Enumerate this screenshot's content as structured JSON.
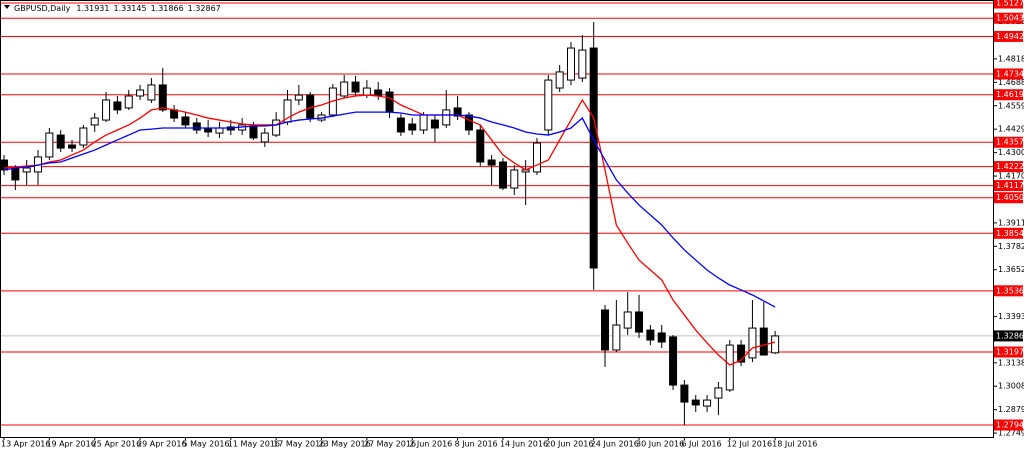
{
  "chart_data": {
    "type": "candlestick",
    "title": "GBPUSD,Daily",
    "quote": [
      1.31931,
      1.33145,
      1.31866,
      1.32867
    ],
    "categories": [
      "13 Apr 2016",
      null,
      null,
      null,
      "19 Apr 2016",
      null,
      null,
      null,
      "25 Apr 2016",
      null,
      null,
      null,
      "29 Apr 2016",
      null,
      null,
      null,
      "5 May 2016",
      null,
      null,
      null,
      "11 May 2016",
      null,
      null,
      null,
      "17 May 2016",
      null,
      null,
      null,
      "23 May 2016",
      null,
      null,
      null,
      "27 May 2016",
      null,
      null,
      null,
      "2 Jun 2016",
      null,
      null,
      null,
      "8 Jun 2016",
      null,
      null,
      null,
      "14 Jun 2016",
      null,
      null,
      null,
      "20 Jun 2016",
      null,
      null,
      null,
      "24 Jun 2016",
      null,
      null,
      null,
      "30 Jun 2016",
      null,
      null,
      null,
      "6 Jul 2016",
      null,
      null,
      null,
      "12 Jul 2016",
      null,
      null,
      null,
      "18 Jul 2016"
    ],
    "open": [
      1.4259,
      1.4215,
      1.4193,
      1.4193,
      1.4276,
      1.4397,
      1.4342,
      1.4342,
      1.4453,
      1.448,
      1.458,
      1.4547,
      1.4613,
      1.4591,
      1.4674,
      1.4536,
      1.4497,
      1.4464,
      1.4436,
      1.4408,
      1.4442,
      1.4425,
      1.4447,
      1.4359,
      1.4397,
      1.4469,
      1.4591,
      1.4618,
      1.448,
      1.4508,
      1.4613,
      1.469,
      1.4618,
      1.4646,
      1.4635,
      1.4491,
      1.4458,
      1.4425,
      1.448,
      1.4453,
      1.4547,
      1.4508,
      1.4425,
      1.4259,
      1.4248,
      1.4104,
      1.4193,
      1.4193,
      1.4425,
      1.4657,
      1.4701,
      1.4712,
      1.4878,
      1.343,
      1.3209,
      1.333,
      1.3419,
      1.3319,
      1.3303,
      1.3281,
      1.3015,
      1.2932,
      1.2899,
      1.2943,
      1.2988,
      1.3236,
      1.3165,
      1.333,
      1.31931
    ],
    "high": [
      1.4287,
      1.4231,
      1.4259,
      1.4314,
      1.4436,
      1.4425,
      1.437,
      1.4453,
      1.4519,
      1.4635,
      1.4613,
      1.4646,
      1.4674,
      1.4712,
      1.4768,
      1.4563,
      1.4524,
      1.4491,
      1.448,
      1.4469,
      1.448,
      1.4491,
      1.4469,
      1.4436,
      1.4524,
      1.4646,
      1.4674,
      1.4635,
      1.4524,
      1.4679,
      1.4729,
      1.4724,
      1.4701,
      1.469,
      1.4657,
      1.4513,
      1.4491,
      1.4524,
      1.4508,
      1.4646,
      1.4613,
      1.4524,
      1.4453,
      1.4287,
      1.427,
      1.4231,
      1.4259,
      1.4381,
      1.4729,
      1.4784,
      1.4911,
      1.495,
      1.5022,
      1.3458,
      1.3485,
      1.3529,
      1.3513,
      1.3347,
      1.3347,
      1.3292,
      1.3043,
      1.296,
      1.296,
      1.3032,
      1.3264,
      1.3264,
      1.3485,
      1.3474,
      1.33145
    ],
    "low": [
      1.4176,
      1.4093,
      1.4121,
      1.4121,
      1.4259,
      1.4303,
      1.4303,
      1.4325,
      1.4414,
      1.4469,
      1.4513,
      1.4536,
      1.4591,
      1.4574,
      1.4524,
      1.4469,
      1.4436,
      1.4403,
      1.4386,
      1.4381,
      1.4397,
      1.4397,
      1.437,
      1.4331,
      1.4386,
      1.4453,
      1.4563,
      1.4469,
      1.4469,
      1.4497,
      1.4602,
      1.4613,
      1.4602,
      1.4591,
      1.4491,
      1.4392,
      1.4397,
      1.4403,
      1.4359,
      1.4436,
      1.448,
      1.4397,
      1.4226,
      1.4121,
      1.4093,
      1.4066,
      1.401,
      1.4176,
      1.4397,
      1.4635,
      1.4674,
      1.469,
      1.3541,
      1.3115,
      1.3198,
      1.3292,
      1.3275,
      1.3236,
      1.322,
      1.2988,
      1.2794,
      1.2866,
      1.2866,
      1.2849,
      1.2977,
      1.312,
      1.3142,
      1.3181,
      1.31866
    ],
    "close": [
      1.4204,
      1.4149,
      1.4215,
      1.4276,
      1.4408,
      1.4325,
      1.4325,
      1.4436,
      1.4491,
      1.4591,
      1.4536,
      1.4613,
      1.4646,
      1.4674,
      1.4536,
      1.4491,
      1.4453,
      1.4425,
      1.4414,
      1.4436,
      1.4425,
      1.4453,
      1.4381,
      1.4408,
      1.448,
      1.4591,
      1.4618,
      1.4491,
      1.4508,
      1.4657,
      1.469,
      1.4635,
      1.4657,
      1.4613,
      1.4524,
      1.4414,
      1.4425,
      1.4508,
      1.4436,
      1.4536,
      1.4502,
      1.4425,
      1.4248,
      1.4231,
      1.4104,
      1.4204,
      1.4204,
      1.4353,
      1.4701,
      1.4746,
      1.4878,
      1.4867,
      1.3662,
      1.3209,
      1.3347,
      1.3419,
      1.3308,
      1.3264,
      1.3253,
      1.3015,
      1.2921,
      1.2905,
      1.2932,
      1.2999,
      1.3236,
      1.3142,
      1.333,
      1.3181,
      1.32867
    ],
    "up_color": "#ffffff",
    "down_color": "#000000",
    "moving_averages": [
      {
        "color": "#ff0000",
        "values": [
          1.4215,
          1.422,
          1.4226,
          1.4231,
          1.4248,
          1.4259,
          1.4287,
          1.4314,
          1.4359,
          1.4397,
          1.4425,
          1.4453,
          1.4491,
          1.4536,
          1.4547,
          1.4536,
          1.4524,
          1.4508,
          1.4491,
          1.448,
          1.4469,
          1.4458,
          1.4453,
          1.4453,
          1.4453,
          1.4491,
          1.4524,
          1.4547,
          1.4563,
          1.4585,
          1.4602,
          1.4613,
          1.4618,
          1.4613,
          1.4602,
          1.4563,
          1.4536,
          1.4508,
          1.4508,
          1.4508,
          1.4508,
          1.448,
          1.4453,
          1.437,
          1.4287,
          1.4243,
          1.4204,
          1.4231,
          1.4259,
          1.437,
          1.448,
          1.4591,
          1.4491,
          1.4204,
          1.39,
          1.38,
          1.3706,
          1.3651,
          1.3596,
          1.3485,
          1.3402,
          1.3319,
          1.3248,
          1.3181,
          1.3126,
          1.3153,
          1.322,
          1.3236,
          1.3253
        ]
      },
      {
        "color": "#0000ff",
        "values": [
          1.4204,
          1.4215,
          1.422,
          1.4231,
          1.4243,
          1.4248,
          1.427,
          1.4292,
          1.4314,
          1.4342,
          1.437,
          1.4397,
          1.4425,
          1.443,
          1.4436,
          1.4436,
          1.4436,
          1.4436,
          1.4436,
          1.4436,
          1.4436,
          1.4442,
          1.4447,
          1.4447,
          1.4453,
          1.4469,
          1.448,
          1.4486,
          1.4491,
          1.4502,
          1.4513,
          1.4524,
          1.4524,
          1.4524,
          1.4524,
          1.4519,
          1.4508,
          1.4508,
          1.4508,
          1.4508,
          1.4508,
          1.4502,
          1.4491,
          1.4469,
          1.4453,
          1.4436,
          1.4414,
          1.4403,
          1.4397,
          1.4414,
          1.4436,
          1.4491,
          1.437,
          1.4259,
          1.4149,
          1.4077,
          1.401,
          1.3955,
          1.39,
          1.3828,
          1.3762,
          1.3706,
          1.3651,
          1.3607,
          1.3568,
          1.3541,
          1.3513,
          1.348,
          1.3446
        ]
      }
    ],
    "ylim": [
      1.27279,
      1.51436
    ],
    "yticks": [
      {
        "value": 1.50235,
        "label": "1.50235"
      },
      {
        "value": 1.4818,
        "label": "1.48180"
      },
      {
        "value": 1.46885,
        "label": "1.46885"
      },
      {
        "value": 1.4559,
        "label": "1.45590"
      },
      {
        "value": 1.44295,
        "label": "1.44295"
      },
      {
        "value": 1.43,
        "label": "1.43000"
      },
      {
        "value": 1.41705,
        "label": "1.41705"
      },
      {
        "value": 1.39115,
        "label": "1.39115"
      },
      {
        "value": 1.3782,
        "label": "1.37820"
      },
      {
        "value": 1.36525,
        "label": "1.36525"
      },
      {
        "value": 1.33935,
        "label": "1.33935"
      },
      {
        "value": 1.3138,
        "label": "1.31380"
      },
      {
        "value": 1.30085,
        "label": "1.30085"
      },
      {
        "value": 1.2879,
        "label": "1.28790"
      },
      {
        "value": 1.27495,
        "label": "1.27495"
      }
    ],
    "levels": [
      {
        "value": 1.5127,
        "label": "1.51270"
      },
      {
        "value": 1.5043,
        "label": "1.50430"
      },
      {
        "value": 1.49421,
        "label": "1.49421"
      },
      {
        "value": 1.47346,
        "label": "1.47346"
      },
      {
        "value": 1.46199,
        "label": "1.46199"
      },
      {
        "value": 1.43573,
        "label": "1.43573"
      },
      {
        "value": 1.42227,
        "label": "1.42227"
      },
      {
        "value": 1.41177,
        "label": "1.41177"
      },
      {
        "value": 1.40506,
        "label": "1.40506"
      },
      {
        "value": 1.3854,
        "label": "1.38540"
      },
      {
        "value": 1.3536,
        "label": "1.35360"
      },
      {
        "value": 1.31977,
        "label": "1.31977"
      },
      {
        "value": 1.27941,
        "label": "1.27941"
      }
    ],
    "level_color": "#ff0000",
    "current_price": {
      "value": 1.32867,
      "label": "1.32867"
    }
  }
}
